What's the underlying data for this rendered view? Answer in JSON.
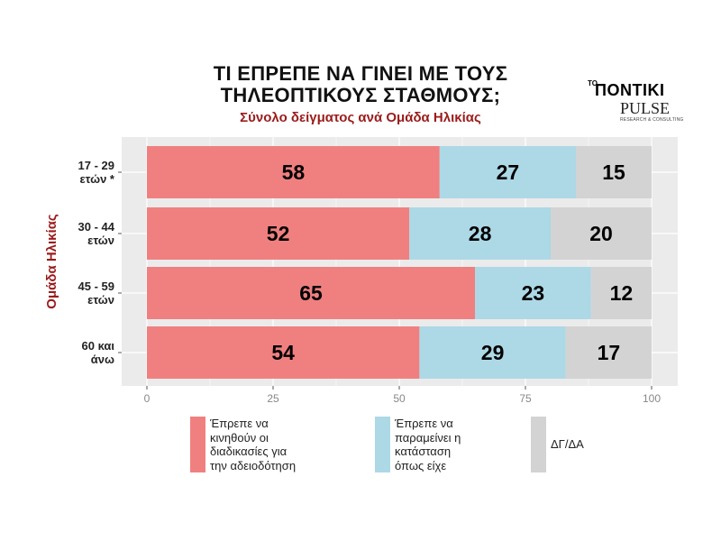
{
  "chart_data": {
    "type": "bar",
    "stacked": true,
    "orientation": "horizontal",
    "title_lines": [
      "ΤΙ ΕΠΡΕΠΕ ΝΑ ΓΙΝΕΙ ΜΕ ΤΟΥΣ",
      "ΤΗΛΕΟΠΤΙΚΟΥΣ ΣΤΑΘΜΟΥΣ;"
    ],
    "subtitle": "Σύνολο δείγματος ανά Ομάδα Ηλικίας",
    "ylabel": "Ομάδα Ηλικίας",
    "categories": [
      [
        "17 - 29",
        "ετών *"
      ],
      [
        "30 - 44",
        "ετών"
      ],
      [
        "45 - 59",
        "ετών"
      ],
      [
        "60 και",
        "άνω"
      ]
    ],
    "series": [
      {
        "name": [
          "Έπρεπε να",
          "κινηθούν οι",
          "διαδικασίες για",
          "την αδειοδότηση"
        ],
        "color": "#F08080",
        "values": [
          58,
          52,
          65,
          54
        ]
      },
      {
        "name": [
          "Έπρεπε να",
          "παραμείνει η",
          "κατάσταση",
          "όπως είχε"
        ],
        "color": "#ADD8E6",
        "values": [
          27,
          28,
          23,
          29
        ]
      },
      {
        "name": [
          "ΔΓ/ΔΑ"
        ],
        "color": "#D3D3D3",
        "values": [
          15,
          20,
          12,
          17
        ]
      }
    ],
    "xlim": [
      0,
      100
    ],
    "xticks": [
      "0",
      "25",
      "50",
      "75",
      "100"
    ],
    "panel_background": "#EBEBEB",
    "grid": true,
    "legend_position": "bottom"
  },
  "logo": {
    "prefix": "ΤΟ",
    "name": "ΠΟΝΤΙΚΙ",
    "partner": "PULSE",
    "tagline": "RESEARCH & CONSULTING"
  }
}
